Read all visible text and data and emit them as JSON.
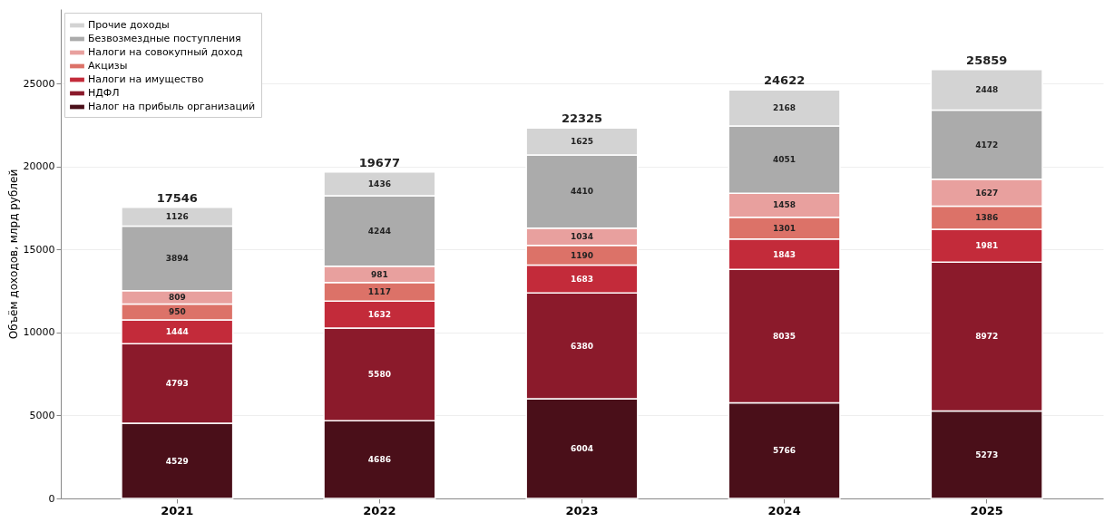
{
  "chart_data": {
    "type": "bar",
    "stacked": true,
    "ylabel": "Объём доходов, млрд рублей",
    "categories": [
      "2021",
      "2022",
      "2023",
      "2024",
      "2025"
    ],
    "series": [
      {
        "name": "Налог на прибыль организаций",
        "color": "#4a0f19",
        "values": [
          4529,
          4686,
          6004,
          5766,
          5273
        ]
      },
      {
        "name": "НДФЛ",
        "color": "#8b1a2b",
        "values": [
          4793,
          5580,
          6380,
          8035,
          8972
        ]
      },
      {
        "name": "Налоги на имущество",
        "color": "#c32b3a",
        "values": [
          1444,
          1632,
          1683,
          1843,
          1981
        ]
      },
      {
        "name": "Акцизы",
        "color": "#dc7268",
        "values": [
          950,
          1117,
          1190,
          1301,
          1386
        ]
      },
      {
        "name": "Налоги на совокупный доход",
        "color": "#e8a09e",
        "values": [
          809,
          981,
          1034,
          1458,
          1627
        ]
      },
      {
        "name": "Безвозмездные поступления",
        "color": "#ababab",
        "values": [
          3894,
          4244,
          4410,
          4051,
          4172
        ]
      },
      {
        "name": "Прочие доходы",
        "color": "#d3d3d3",
        "values": [
          1126,
          1436,
          1625,
          2168,
          2448
        ]
      }
    ],
    "totals": [
      "17546",
      "19677",
      "22325",
      "24622",
      "25859"
    ],
    "data_labels": true,
    "ylim": [
      0,
      29500
    ],
    "yticks": [
      0,
      5000,
      10000,
      15000,
      20000,
      25000
    ],
    "grid": "y",
    "legend": "top left"
  }
}
